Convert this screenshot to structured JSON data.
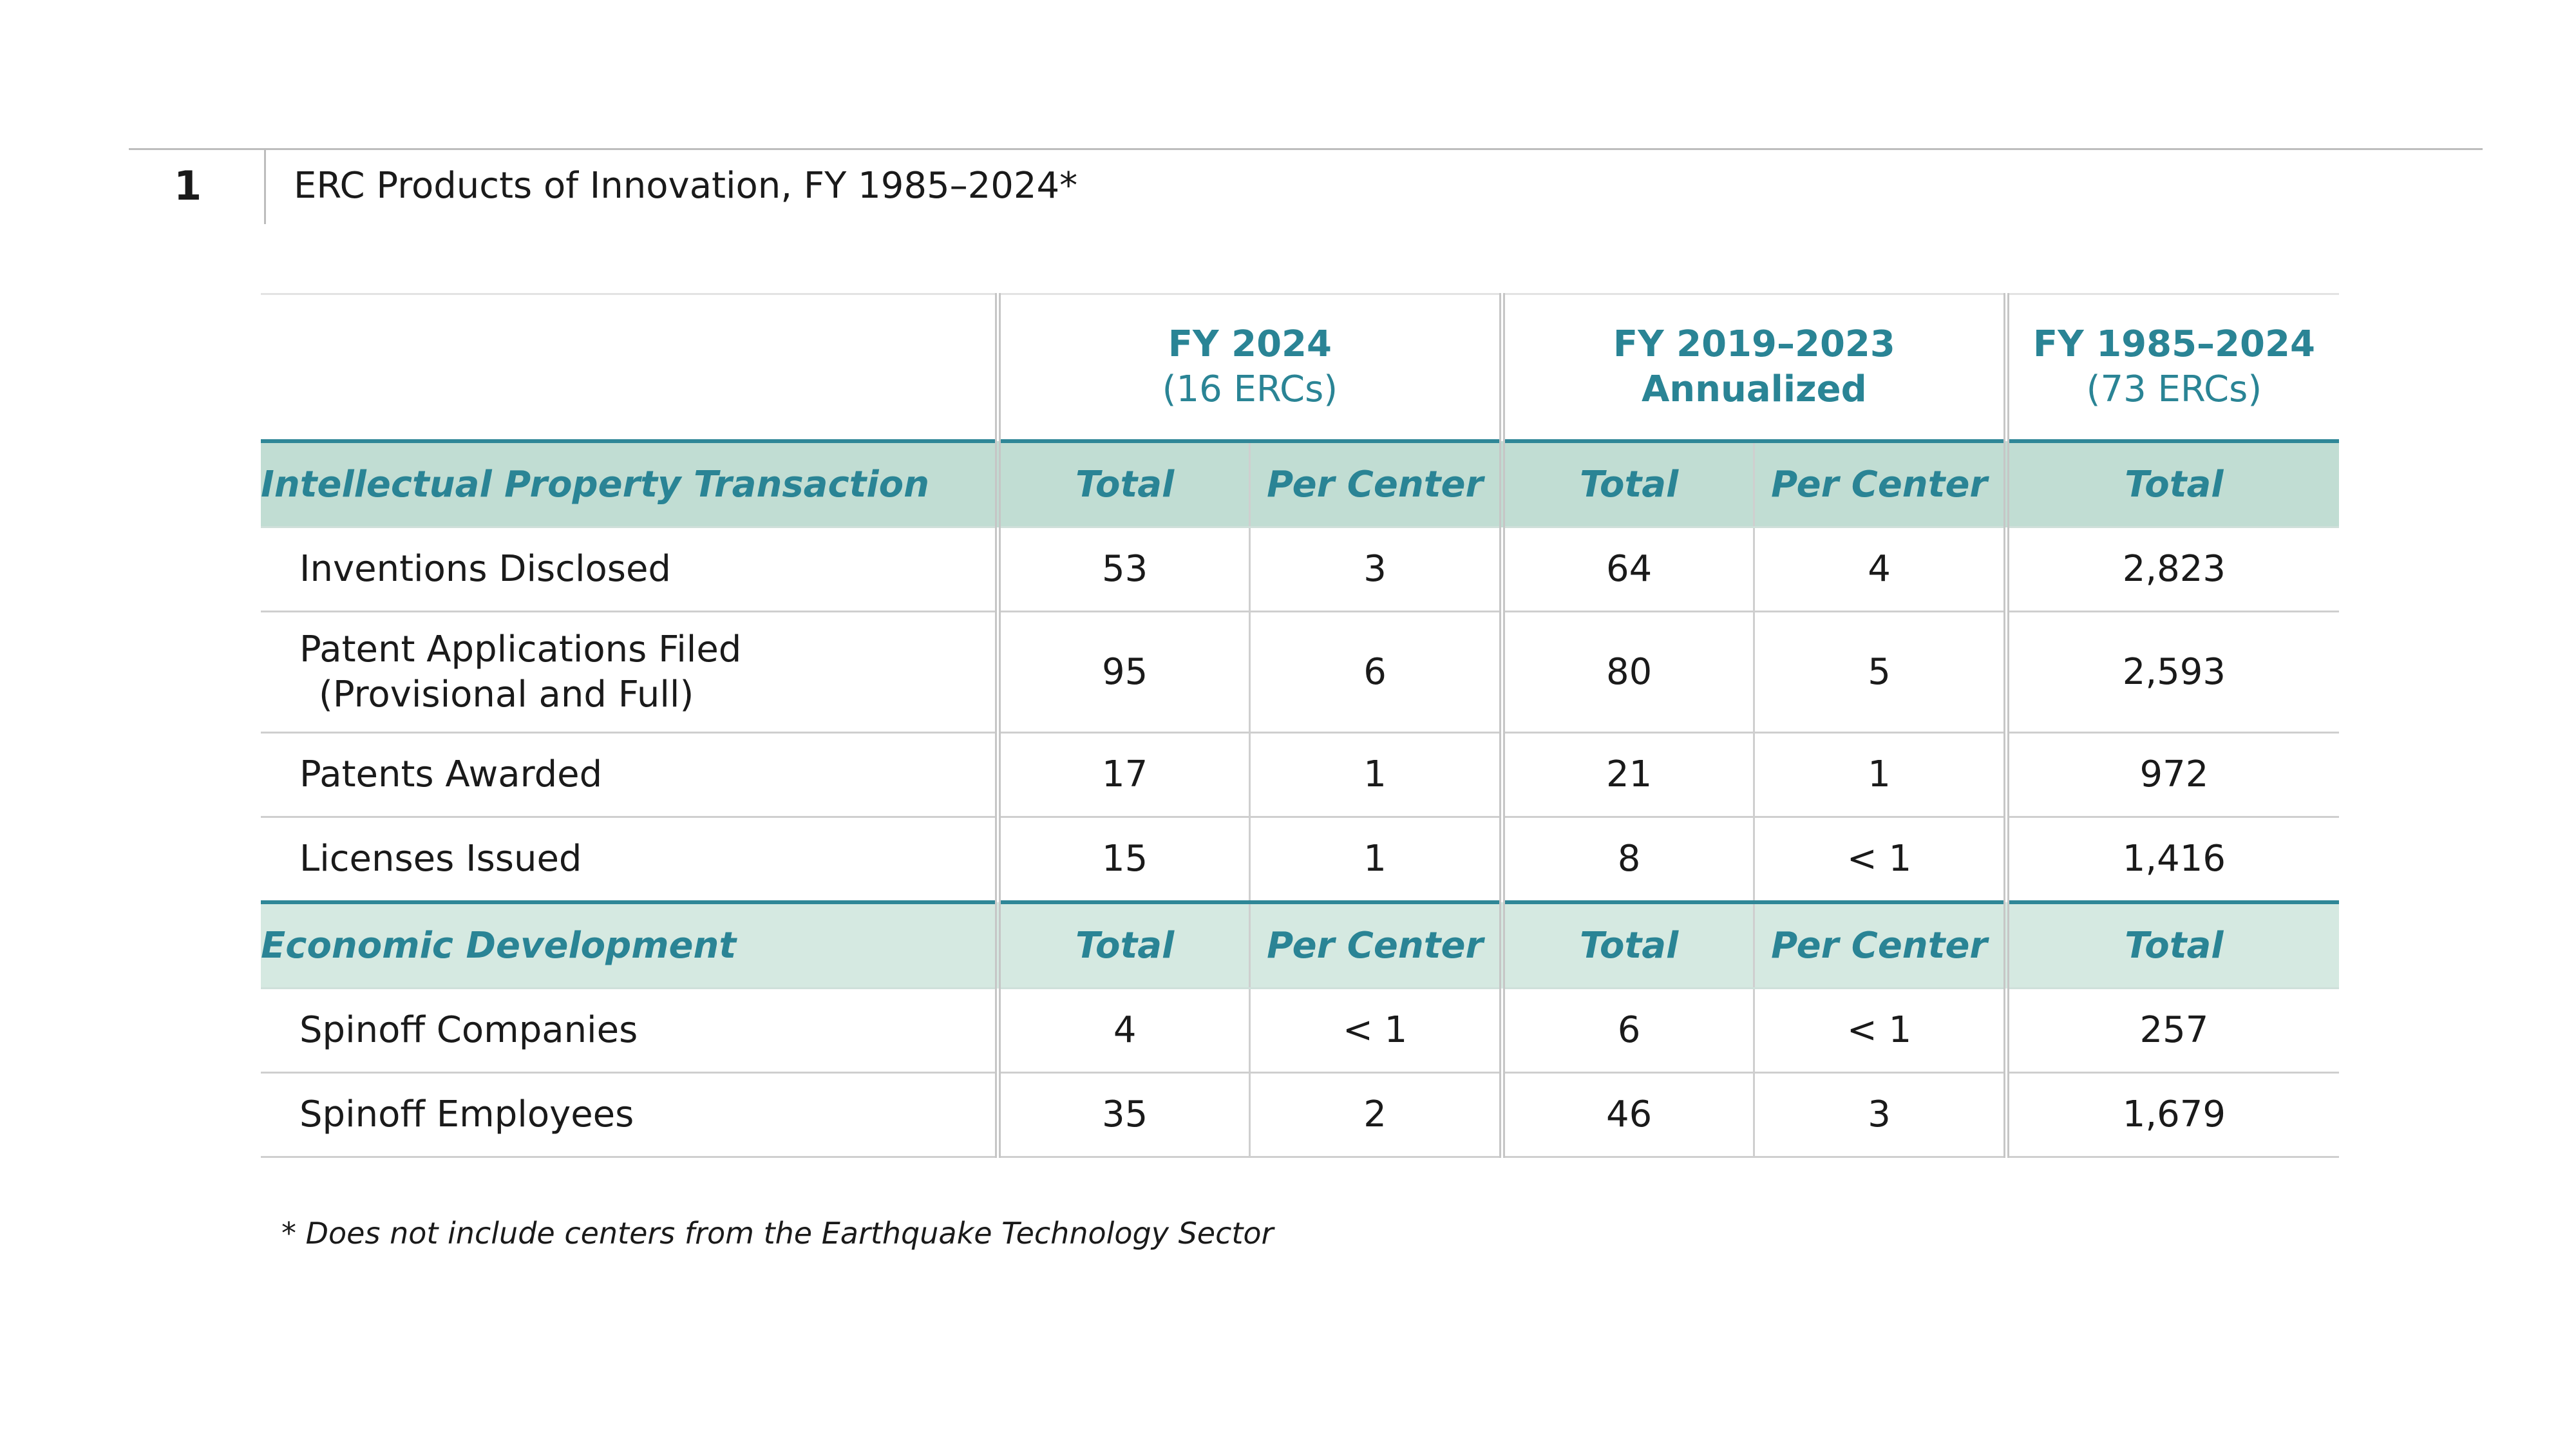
{
  "header": {
    "table_number": "1",
    "title": "ERC Products of Innovation, FY 1985–2024*"
  },
  "column_groups": [
    {
      "title": "FY 2024",
      "subtitle": "(16 ERCs)"
    },
    {
      "title": "FY 2019–2023 Annualized",
      "subtitle": ""
    },
    {
      "title": "FY 1985–2024",
      "subtitle": "(73 ERCs)"
    }
  ],
  "sections": [
    {
      "title": "Intellectual Property Transaction",
      "col_headers": [
        "Total",
        "Per Center",
        "Total",
        "Per Center",
        "Total"
      ],
      "rows": [
        {
          "label_line1": "Inventions Disclosed",
          "label_line2": "",
          "values": [
            "53",
            "3",
            "64",
            "4",
            "2,823"
          ]
        },
        {
          "label_line1": "Patent Applications Filed",
          "label_line2": "(Provisional and Full)",
          "values": [
            "95",
            "6",
            "80",
            "5",
            "2,593"
          ]
        },
        {
          "label_line1": "Patents Awarded",
          "label_line2": "",
          "values": [
            "17",
            "1",
            "21",
            "1",
            "972"
          ]
        },
        {
          "label_line1": "Licenses Issued",
          "label_line2": "",
          "values": [
            "15",
            "1",
            "8",
            "< 1",
            "1,416"
          ]
        }
      ]
    },
    {
      "title": "Economic Development",
      "col_headers": [
        "Total",
        "Per Center",
        "Total",
        "Per Center",
        "Total"
      ],
      "rows": [
        {
          "label_line1": "Spinoff Companies",
          "label_line2": "",
          "values": [
            "4",
            "< 1",
            "6",
            "< 1",
            "257"
          ]
        },
        {
          "label_line1": "Spinoff Employees",
          "label_line2": "",
          "values": [
            "35",
            "2",
            "46",
            "3",
            "1,679"
          ]
        }
      ]
    }
  ],
  "footnote": "* Does not include centers from the Earthquake Technology Sector",
  "colors": {
    "accent": "#2a8495",
    "section_band_1": "#c1ddd3",
    "section_band_2": "#d5e9e1",
    "rule": "#cfcfcf"
  }
}
